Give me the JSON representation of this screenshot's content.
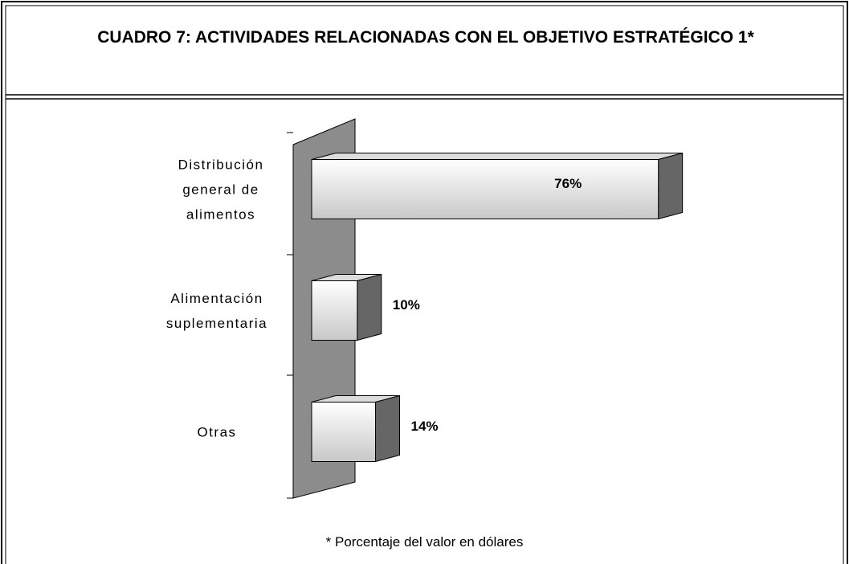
{
  "chart_data": {
    "type": "bar3d_horizontal",
    "title": "CUADRO 7: ACTIVIDADES RELACIONADAS CON EL OBJETIVO ESTRATÉGICO 1*",
    "categories": [
      "Distribución general de alimentos",
      "Alimentación suplementaria",
      "Otras"
    ],
    "values": [
      76,
      10,
      14
    ],
    "value_labels": [
      "76%",
      "10%",
      "14%"
    ],
    "footnote": "* Porcentaje del valor en dólares"
  }
}
